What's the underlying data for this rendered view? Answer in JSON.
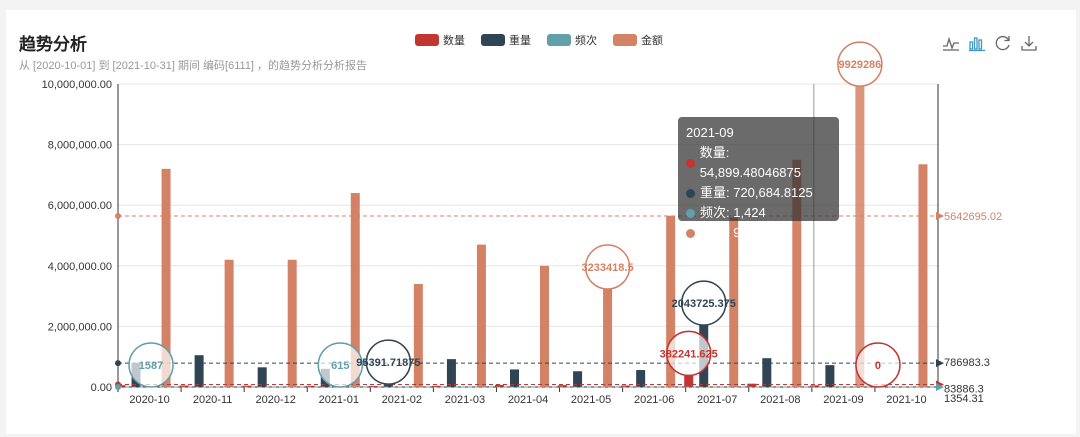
{
  "header": {
    "title": "趋势分析",
    "subtitle": "从 [2020-10-01] 到 [2021-10-31] 期间 编码[6111] ，的趋势分析分析报告"
  },
  "legend": [
    {
      "name": "数量",
      "color": "#c23531"
    },
    {
      "name": "重量",
      "color": "#2f4554"
    },
    {
      "name": "频次",
      "color": "#61a0a8"
    },
    {
      "name": "金额",
      "color": "#d48265"
    }
  ],
  "toolbox": [
    "line-chart-icon",
    "bar-chart-icon",
    "restore-icon",
    "download-icon"
  ],
  "tooltip": {
    "title": "2021-09",
    "rows": [
      {
        "label": "数量: 54,899.48046875",
        "color": "#c23531"
      },
      {
        "label": "重量: 720,684.8125",
        "color": "#2f4554"
      },
      {
        "label": "频次: 1,424",
        "color": "#61a0a8"
      },
      {
        "label": "金额: 9,929,286",
        "color": "#d48265"
      }
    ]
  },
  "chart_data": {
    "type": "bar",
    "categories": [
      "2020-10",
      "2020-11",
      "2020-12",
      "2021-01",
      "2021-02",
      "2021-03",
      "2021-04",
      "2021-05",
      "2021-06",
      "2021-07",
      "2021-08",
      "2021-09",
      "2021-10"
    ],
    "ylim": [
      0,
      10000000
    ],
    "y_ticks": [
      "0.00",
      "2,000,000.00",
      "4,000,000.00",
      "6,000,000.00",
      "8,000,000.00",
      "10,000,000.00"
    ],
    "series": [
      {
        "name": "数量",
        "color": "#c23531",
        "values": [
          60000,
          50000,
          45000,
          40000,
          35000,
          40000,
          70000,
          60000,
          50000,
          382241.625,
          110000,
          54899.48,
          0
        ]
      },
      {
        "name": "重量",
        "color": "#2f4554",
        "values": [
          800000,
          1050000,
          650000,
          600000,
          95391.71875,
          920000,
          580000,
          520000,
          560000,
          2043725.375,
          950000,
          720684.81,
          0
        ]
      },
      {
        "name": "频次",
        "color": "#61a0a8",
        "values": [
          1587,
          1800,
          1700,
          615,
          1500,
          1700,
          1600,
          1500,
          1400,
          1600,
          1500,
          1424,
          1000
        ]
      },
      {
        "name": "金额",
        "color": "#d48265",
        "values": [
          7200000,
          4200000,
          4200000,
          6400000,
          3400000,
          4700000,
          4000000,
          3233418.5,
          5650000,
          5600000,
          7500000,
          9929286,
          7350000
        ]
      }
    ],
    "mark_points": [
      {
        "label": "1587",
        "series": 2,
        "index": 0
      },
      {
        "label": "615",
        "series": 2,
        "index": 3
      },
      {
        "label": "95391.71875",
        "series": 1,
        "index": 4
      },
      {
        "label": "3233418.5",
        "series": 3,
        "index": 7
      },
      {
        "label": "382241.625",
        "series": 0,
        "index": 9
      },
      {
        "label": "2043725.375",
        "series": 1,
        "index": 9
      },
      {
        "label": "9929286",
        "series": 3,
        "index": 11
      },
      {
        "label": "0",
        "series": 0,
        "index": 12
      }
    ],
    "mark_lines": [
      {
        "label": "5642695.02",
        "value": 5642695.02,
        "color": "#d48265"
      },
      {
        "label": "786983.3",
        "value": 786983.3,
        "color": "#2f4554"
      },
      {
        "label": "83886.3",
        "value": 83886.3,
        "color": "#c23531"
      },
      {
        "label": "1354.31",
        "value": 1354.31,
        "color": "#61a0a8"
      }
    ]
  }
}
